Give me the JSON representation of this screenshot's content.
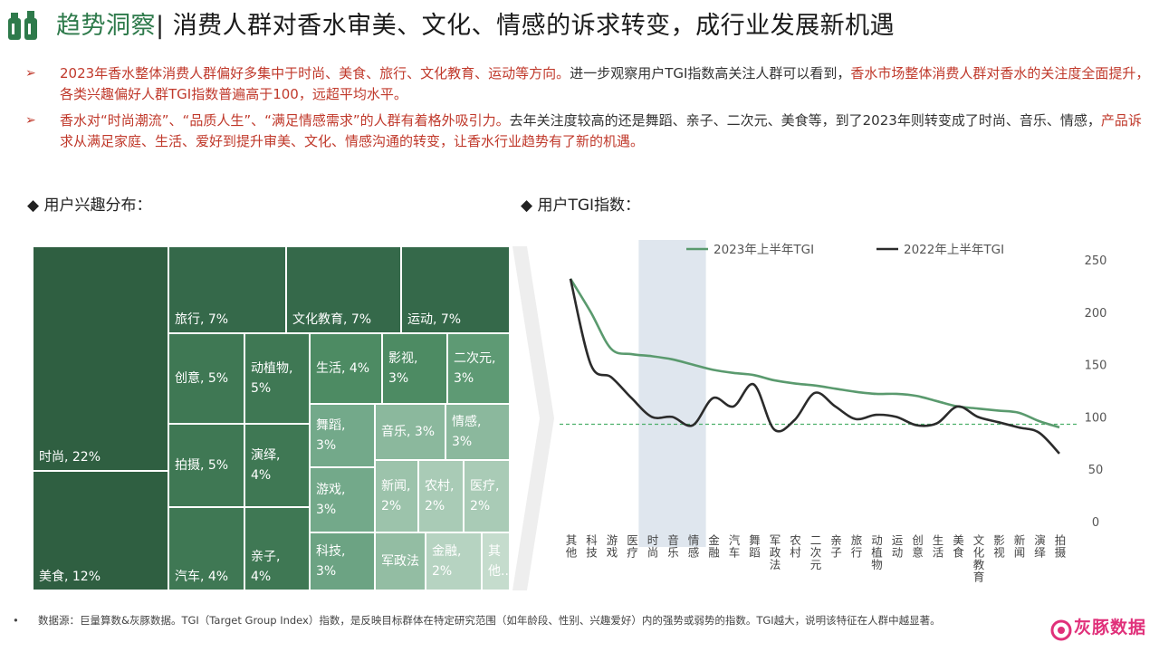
{
  "header": {
    "title_accent": "趋势洞察",
    "title_sep": "| ",
    "title_main": "消费人群对香水审美、文化、情感的诉求转变，成行业发展新机遇"
  },
  "bullets": [
    {
      "marker": "➢",
      "text_red": "2023年香水整体消费人群偏好多集中于时尚、美食、旅行、文化教育、运动等方向。",
      "text_normal": "进一步观察用户TGI指数高关注人群可以看到，",
      "text_red2": "香水市场整体消费人群对香水的关注度全面提升，各类兴趣偏好人群TGI指数普遍高于100，远超平均水平。"
    },
    {
      "marker": "➢",
      "text_red": "香水对“时尚潮流”、“品质人生”、“满足情感需求”的人群有着格外吸引力。",
      "text_normal": "去年关注度较高的还是舞蹈、亲子、二次元、美食等，到了2023年则转变成了时尚、音乐、情感，",
      "text_red2": "产品诉求从满足家庭、生活、爱好到提升审美、文化、情感沟通的转变，让香水行业趋势有了新的机遇。"
    }
  ],
  "sections": {
    "left_title": "◆ 用户兴趣分布：",
    "right_title": "◆ 用户TGI指数："
  },
  "colors": {
    "accent_green": "#2e7a4b",
    "accent_red": "#c0392b",
    "line_2023": "#5a9a6e",
    "line_2022": "#2b2b2b",
    "highlight_band": "#c9d6e3",
    "brand_pink": "#e0307a"
  },
  "treemap": [
    {
      "label": "时尚, 22%",
      "value": 22
    },
    {
      "label": "美食, 12%",
      "value": 12
    },
    {
      "label": "旅行, 7%",
      "value": 7
    },
    {
      "label": "文化教育, 7%",
      "value": 7
    },
    {
      "label": "运动, 7%",
      "value": 7
    },
    {
      "label": "创意, 5%",
      "value": 5
    },
    {
      "label": "动植物, 5%",
      "value": 5
    },
    {
      "label": "拍摄, 5%",
      "value": 5
    },
    {
      "label": "演绎, 4%",
      "value": 4
    },
    {
      "label": "汽车, 4%",
      "value": 4
    },
    {
      "label": "亲子, 4%",
      "value": 4
    },
    {
      "label": "生活, 4%",
      "value": 4
    },
    {
      "label": "影视, 3%",
      "value": 3
    },
    {
      "label": "二次元, 3%",
      "value": 3
    },
    {
      "label": "舞蹈, 3%",
      "value": 3
    },
    {
      "label": "音乐, 3%",
      "value": 3
    },
    {
      "label": "情感, 3%",
      "value": 3
    },
    {
      "label": "游戏, 3%",
      "value": 3
    },
    {
      "label": "新闻, 2%",
      "value": 2
    },
    {
      "label": "农村, 2%",
      "value": 2
    },
    {
      "label": "医疗, 2%",
      "value": 2
    },
    {
      "label": "科技, 3%",
      "value": 3
    },
    {
      "label": "军政法",
      "value": 2
    },
    {
      "label": "金融, 2%",
      "value": 2
    },
    {
      "label": "其他...",
      "value": 1
    }
  ],
  "chart_data": {
    "type": "line",
    "title": "",
    "xlabel": "",
    "ylabel": "",
    "ylim": [
      0,
      250
    ],
    "y_ticks": [
      "0",
      "50",
      "100",
      "150",
      "200",
      "250"
    ],
    "y_axis_position": "right",
    "legend_position": "top",
    "reference_line": 93,
    "highlight_categories": [
      "时尚",
      "音乐",
      "情感"
    ],
    "categories": [
      "其他",
      "科技",
      "游戏",
      "医疗",
      "时尚",
      "音乐",
      "情感",
      "金融",
      "汽车",
      "舞蹈",
      "军政法",
      "农村",
      "二次元",
      "亲子",
      "旅行",
      "动植物",
      "运动",
      "创意",
      "生活",
      "美食",
      "文化教育",
      "影视",
      "新闻",
      "演绎",
      "拍摄"
    ],
    "series": [
      {
        "name": "2023年上半年TGI",
        "values": [
          232,
          200,
          165,
          160,
          158,
          155,
          150,
          145,
          142,
          140,
          135,
          132,
          130,
          127,
          124,
          122,
          122,
          120,
          115,
          110,
          108,
          106,
          104,
          96,
          90
        ]
      },
      {
        "name": "2022年上半年TGI",
        "values": [
          232,
          150,
          138,
          118,
          100,
          100,
          92,
          118,
          110,
          131,
          88,
          97,
          123,
          110,
          98,
          102,
          100,
          92,
          94,
          110,
          100,
          95,
          90,
          85,
          65
        ]
      }
    ]
  },
  "footer": {
    "bullet": "•",
    "source": "数据源：巨量算数&灰豚数据。TGI（Target Group Index）指数，是反映目标群体在特定研究范围（如年龄段、性别、兴趣爱好）内的强势或弱势的指数。TGI越大，说明该特征在人群中越显著。",
    "brand_name": "灰豚数据"
  }
}
